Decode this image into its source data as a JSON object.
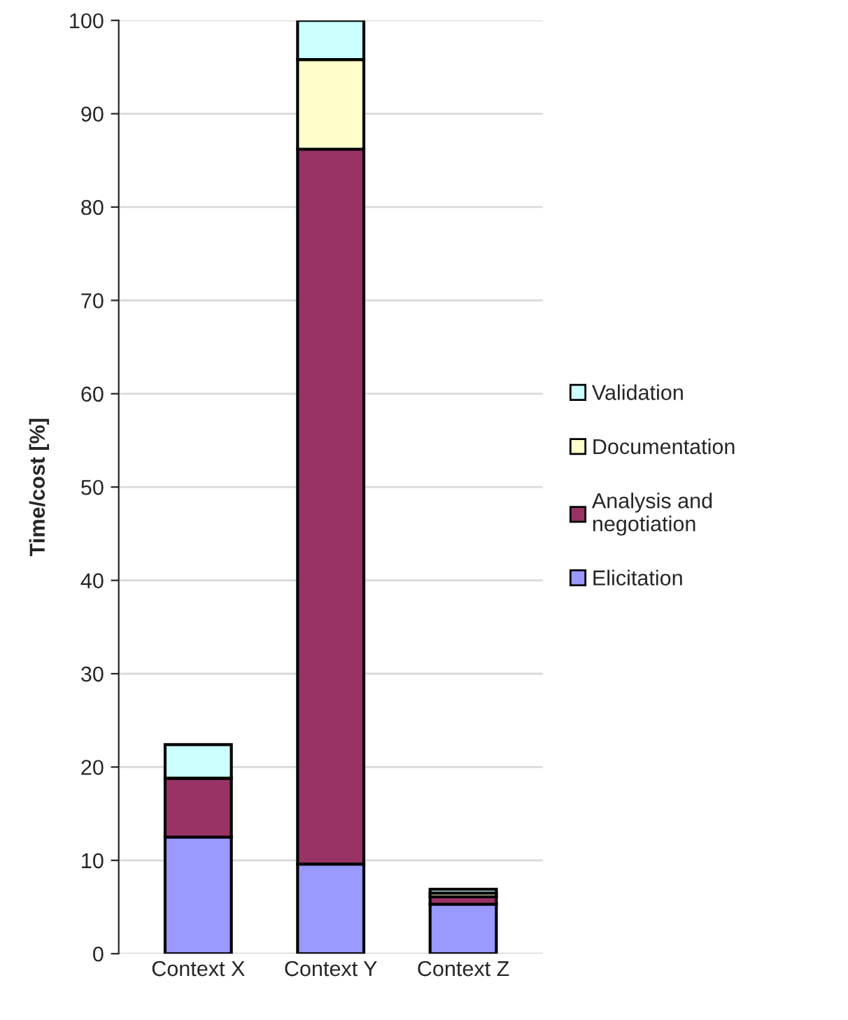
{
  "chart_data": {
    "type": "bar",
    "stacked": true,
    "ylabel": "Time/cost [%]",
    "categories": [
      "Context X",
      "Context Y",
      "Context Z"
    ],
    "series": [
      {
        "name": "Elicitation",
        "color": "#9999ff",
        "values": [
          12.5,
          9.6,
          5.3
        ]
      },
      {
        "name": "Analysis and\nnegotiation",
        "color": "#993366",
        "values": [
          6.3,
          76.6,
          0.8
        ]
      },
      {
        "name": "Documentation",
        "color": "#ffffcc",
        "values": [
          0,
          9.6,
          0.4
        ]
      },
      {
        "name": "Validation",
        "color": "#ccffff",
        "values": [
          3.6,
          4.2,
          0.4
        ]
      }
    ],
    "ylim": [
      0,
      100
    ],
    "yticks": [
      0,
      10,
      20,
      30,
      40,
      50,
      60,
      70,
      80,
      90,
      100
    ],
    "grid": "y",
    "legend": "right"
  }
}
